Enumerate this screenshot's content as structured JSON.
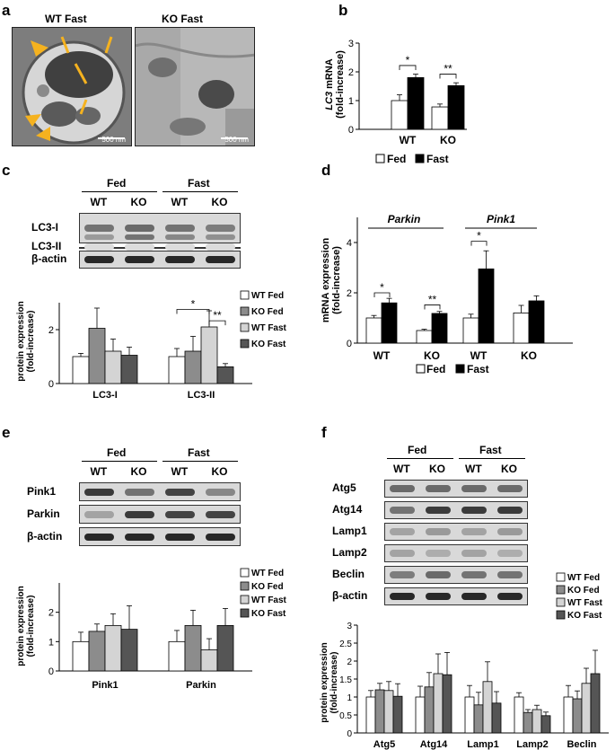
{
  "panels": {
    "a": {
      "label": "a",
      "left_title": "WT Fast",
      "right_title": "KO Fast",
      "scale_left": "500 nm",
      "scale_right": "500 nm"
    },
    "b": {
      "label": "b"
    },
    "c": {
      "label": "c",
      "groups": [
        "Fed",
        "Fast"
      ],
      "lanes": [
        "WT",
        "KO",
        "WT",
        "KO"
      ],
      "rows": [
        "LC3-I",
        "LC3-II",
        "β-actin"
      ]
    },
    "d": {
      "label": "d"
    },
    "e": {
      "label": "e",
      "groups": [
        "Fed",
        "Fast"
      ],
      "lanes": [
        "WT",
        "KO",
        "WT",
        "KO"
      ],
      "rows": [
        "Pink1",
        "Parkin",
        "β-actin"
      ]
    },
    "f": {
      "label": "f",
      "groups": [
        "Fed",
        "Fast"
      ],
      "lanes": [
        "WT",
        "KO",
        "WT",
        "KO"
      ],
      "rows": [
        "Atg5",
        "Atg14",
        "Lamp1",
        "Lamp2",
        "Beclin",
        "β-actin"
      ]
    }
  },
  "legend4": [
    "WT Fed",
    "KO Fed",
    "WT Fast",
    "KO Fast"
  ],
  "legend2": [
    "Fed",
    "Fast"
  ],
  "colors": {
    "wt_fed": "#ffffff",
    "ko_fed": "#8c8c8c",
    "wt_fast": "#d4d4d4",
    "ko_fast": "#555555",
    "fed": "#ffffff",
    "fast": "#000000"
  },
  "chart_data": [
    {
      "id": "b",
      "type": "bar",
      "categories": [
        "WT",
        "KO"
      ],
      "series": [
        {
          "name": "Fed",
          "values": [
            1.0,
            0.78
          ],
          "errors": [
            0.2,
            0.1
          ]
        },
        {
          "name": "Fast",
          "values": [
            1.8,
            1.52
          ],
          "errors": [
            0.12,
            0.1
          ]
        }
      ],
      "ylabel_italic": "LC3",
      "ylabel_rest": " mRNA",
      "ylabel2": "(fold-increase)",
      "ylim": [
        0,
        3
      ],
      "yticks": [
        0,
        1,
        2,
        3
      ],
      "annotations": [
        "*",
        "**"
      ]
    },
    {
      "id": "c",
      "type": "bar",
      "categories": [
        "LC3-I",
        "LC3-II"
      ],
      "series": [
        {
          "name": "WT Fed",
          "values": [
            1.0,
            1.0
          ],
          "errors": [
            0.12,
            0.3
          ]
        },
        {
          "name": "KO Fed",
          "values": [
            2.05,
            1.2
          ],
          "errors": [
            0.75,
            0.55
          ]
        },
        {
          "name": "WT Fast",
          "values": [
            1.2,
            2.1
          ],
          "errors": [
            0.45,
            0.6
          ]
        },
        {
          "name": "KO Fast",
          "values": [
            1.05,
            0.62
          ],
          "errors": [
            0.3,
            0.12
          ]
        }
      ],
      "ylabel": "protein expression",
      "ylabel2": "(fold-increase)",
      "ylim": [
        0,
        3
      ],
      "yticks": [
        0,
        2
      ],
      "annotations": [
        "*",
        "**"
      ]
    },
    {
      "id": "d",
      "type": "bar",
      "categories": [
        "WT",
        "KO",
        "WT",
        "KO"
      ],
      "groups": [
        "Parkin",
        "Pink1"
      ],
      "series": [
        {
          "name": "Fed",
          "values": [
            1.0,
            0.5,
            1.0,
            1.2
          ],
          "errors": [
            0.1,
            0.05,
            0.15,
            0.3
          ]
        },
        {
          "name": "Fast",
          "values": [
            1.6,
            1.18,
            2.95,
            1.68
          ],
          "errors": [
            0.18,
            0.08,
            0.72,
            0.2
          ]
        }
      ],
      "ylabel": "mRNA expression",
      "ylabel2": "(fold-increase)",
      "ylim": [
        0,
        5
      ],
      "yticks": [
        0,
        2,
        4
      ],
      "annotations": [
        "*",
        "**",
        "*"
      ]
    },
    {
      "id": "e",
      "type": "bar",
      "categories": [
        "Pink1",
        "Parkin"
      ],
      "series": [
        {
          "name": "WT Fed",
          "values": [
            1.0,
            1.0
          ],
          "errors": [
            0.32,
            0.38
          ]
        },
        {
          "name": "KO Fed",
          "values": [
            1.35,
            1.55
          ],
          "errors": [
            0.25,
            0.52
          ]
        },
        {
          "name": "WT Fast",
          "values": [
            1.55,
            0.72
          ],
          "errors": [
            0.4,
            0.38
          ]
        },
        {
          "name": "KO Fast",
          "values": [
            1.42,
            1.55
          ],
          "errors": [
            0.8,
            0.58
          ]
        }
      ],
      "ylabel": "protein expression",
      "ylabel2": "(fold-increase)",
      "ylim": [
        0,
        3
      ],
      "yticks": [
        0,
        1,
        2
      ]
    },
    {
      "id": "f",
      "type": "bar",
      "categories": [
        "Atg5",
        "Atg14",
        "Lamp1",
        "Lamp2",
        "Beclin"
      ],
      "series": [
        {
          "name": "WT Fed",
          "values": [
            1.0,
            1.0,
            1.0,
            1.0,
            1.0
          ],
          "errors": [
            0.18,
            0.3,
            0.32,
            0.12,
            0.32
          ]
        },
        {
          "name": "KO Fed",
          "values": [
            1.2,
            1.28,
            0.78,
            0.57,
            0.95
          ],
          "errors": [
            0.18,
            0.4,
            0.35,
            0.08,
            0.22
          ]
        },
        {
          "name": "WT Fast",
          "values": [
            1.18,
            1.65,
            1.43,
            0.65,
            1.38
          ],
          "errors": [
            0.25,
            0.55,
            0.55,
            0.12,
            0.42
          ]
        },
        {
          "name": "KO Fast",
          "values": [
            1.02,
            1.62,
            0.83,
            0.48,
            1.65
          ],
          "errors": [
            0.35,
            0.62,
            0.32,
            0.1,
            0.65
          ]
        }
      ],
      "ylabel": "protein expression",
      "ylabel2": "(fold-increase)",
      "ylim": [
        0,
        3
      ],
      "yticks": [
        0,
        0.5,
        1,
        1.5,
        2,
        2.5,
        3
      ]
    }
  ]
}
